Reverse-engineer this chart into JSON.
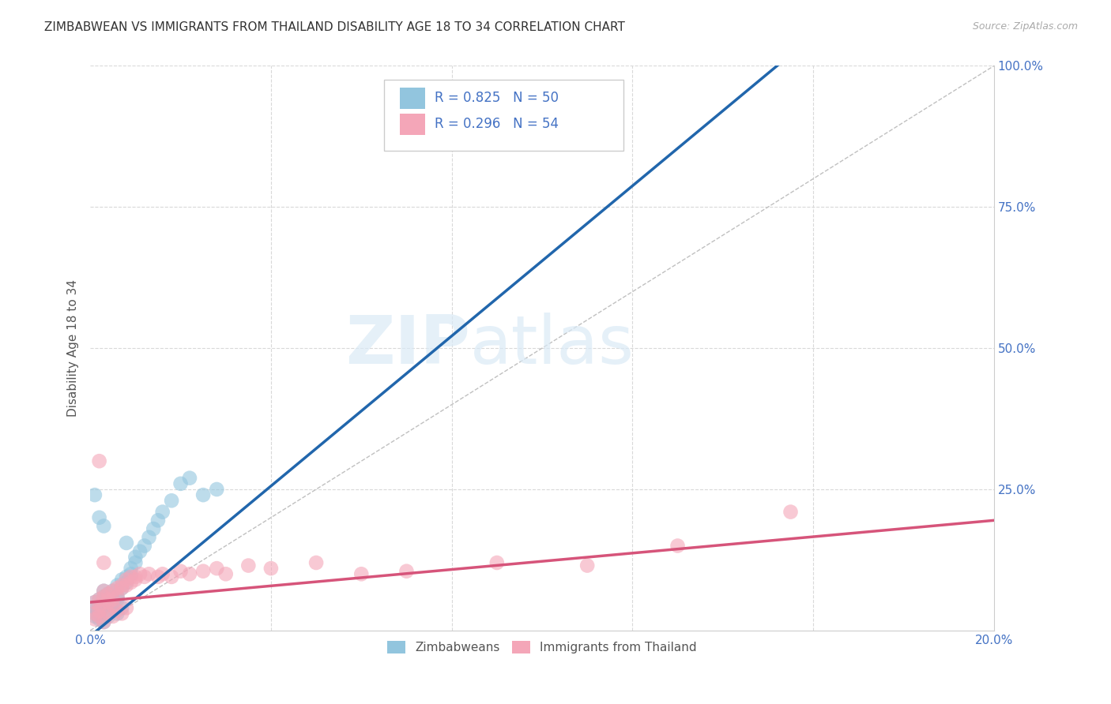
{
  "title": "ZIMBABWEAN VS IMMIGRANTS FROM THAILAND DISABILITY AGE 18 TO 34 CORRELATION CHART",
  "source": "Source: ZipAtlas.com",
  "ylabel": "Disability Age 18 to 34",
  "xlim": [
    0.0,
    0.2
  ],
  "ylim": [
    0.0,
    1.0
  ],
  "blue_color": "#92c5de",
  "pink_color": "#f4a6b8",
  "blue_line_color": "#2166ac",
  "pink_line_color": "#d6547a",
  "axis_tick_color": "#4472c4",
  "ref_line_color": "#c0c0c0",
  "grid_color": "#d9d9d9",
  "blue_scatter_x": [
    0.001,
    0.001,
    0.002,
    0.002,
    0.002,
    0.003,
    0.003,
    0.003,
    0.004,
    0.004,
    0.004,
    0.005,
    0.005,
    0.005,
    0.006,
    0.006,
    0.006,
    0.007,
    0.007,
    0.008,
    0.008,
    0.009,
    0.009,
    0.01,
    0.01,
    0.011,
    0.012,
    0.013,
    0.014,
    0.015,
    0.016,
    0.018,
    0.02,
    0.022,
    0.025,
    0.028,
    0.001,
    0.002,
    0.003,
    0.001,
    0.002,
    0.003,
    0.004,
    0.005,
    0.006,
    0.007,
    0.002,
    0.001,
    0.003,
    0.008
  ],
  "blue_scatter_y": [
    0.03,
    0.05,
    0.045,
    0.055,
    0.035,
    0.06,
    0.04,
    0.07,
    0.05,
    0.055,
    0.065,
    0.045,
    0.055,
    0.07,
    0.08,
    0.06,
    0.055,
    0.09,
    0.075,
    0.095,
    0.085,
    0.1,
    0.11,
    0.12,
    0.13,
    0.14,
    0.15,
    0.165,
    0.18,
    0.195,
    0.21,
    0.23,
    0.26,
    0.27,
    0.24,
    0.25,
    0.025,
    0.02,
    0.015,
    0.04,
    0.03,
    0.045,
    0.025,
    0.035,
    0.03,
    0.04,
    0.2,
    0.24,
    0.185,
    0.155
  ],
  "pink_scatter_x": [
    0.001,
    0.001,
    0.002,
    0.002,
    0.002,
    0.003,
    0.003,
    0.003,
    0.004,
    0.004,
    0.004,
    0.005,
    0.005,
    0.005,
    0.006,
    0.006,
    0.007,
    0.007,
    0.008,
    0.008,
    0.009,
    0.009,
    0.01,
    0.01,
    0.011,
    0.012,
    0.013,
    0.015,
    0.016,
    0.018,
    0.02,
    0.022,
    0.025,
    0.028,
    0.03,
    0.035,
    0.04,
    0.05,
    0.06,
    0.07,
    0.001,
    0.002,
    0.003,
    0.004,
    0.005,
    0.006,
    0.007,
    0.008,
    0.002,
    0.003,
    0.09,
    0.11,
    0.13,
    0.155
  ],
  "pink_scatter_y": [
    0.03,
    0.05,
    0.045,
    0.055,
    0.035,
    0.06,
    0.04,
    0.07,
    0.05,
    0.055,
    0.065,
    0.045,
    0.055,
    0.07,
    0.075,
    0.06,
    0.08,
    0.075,
    0.09,
    0.08,
    0.095,
    0.085,
    0.095,
    0.09,
    0.1,
    0.095,
    0.1,
    0.095,
    0.1,
    0.095,
    0.105,
    0.1,
    0.105,
    0.11,
    0.1,
    0.115,
    0.11,
    0.12,
    0.1,
    0.105,
    0.02,
    0.025,
    0.015,
    0.03,
    0.025,
    0.035,
    0.03,
    0.04,
    0.3,
    0.12,
    0.12,
    0.115,
    0.15,
    0.21
  ],
  "blue_line_x0": 0.0,
  "blue_line_y0": -0.01,
  "blue_line_x1": 0.155,
  "blue_line_y1": 1.02,
  "pink_line_x0": 0.0,
  "pink_line_y0": 0.05,
  "pink_line_x1": 0.2,
  "pink_line_y1": 0.195,
  "ref_line_x0": 0.0,
  "ref_line_y0": 0.0,
  "ref_line_x1": 0.2,
  "ref_line_y1": 1.0
}
